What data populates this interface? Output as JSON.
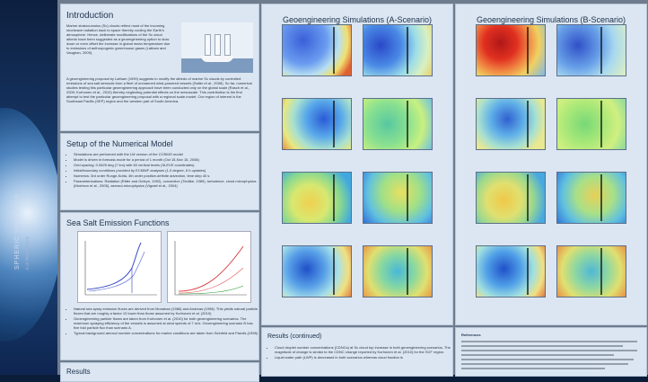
{
  "side": {
    "title": "SPHERIC SCIENCES",
    "subtitle": "e of Atmospheric"
  },
  "intro": {
    "title": "Introduction",
    "text1": "Marine stratocumulus (Sc) clouds reflect most of the incoming shortwave radiation back to space thereby cooling the Earth's atmosphere. Hence, deliberate modifications of the Sc cloud albedo have been suggested as a geoengineering option to slow down or even offset the increase in global mean temperature due to emissions of anthropogenic greenhouse gases (Latham and Vaughan, 2009).",
    "text2": "A geoengineering proposal by Latham (1990) suggests to modify the albedo of marine Sc clouds by controlled emissions of sea salt aerosols from a fleet of unmanned wind-powered vessels (Salter et al., 2008). So far, numerical studies testing this particular geoengineering approach have been conducted only on the global scale (Rasch et al., 2009; Korhonen et al., 2010) thereby neglecting potential effects on the mesoscale. This contribution is the first attempt to test the particular geoengineering proposal with a regional scale-model. Our region of interest is the Southeast Pacific (SEP) region and the western part of South America."
  },
  "setup": {
    "title": "Setup of the Numerical Model",
    "items": [
      "Simulations are performed with the LM version of the COSMO model",
      "Model is driven in forecast-mode for a period of 1 month (Oct 15-Nov 15, 2008)",
      "Grid spacing: 0.0625 deg (7 km) with 60 vertical levels (SLEVE coordinates)",
      "Initial/boundary conditions provided by ECMWF analyses (1.0 degree, 6 h updates)",
      "Numerics: 3rd order Runge-Kutta, 4th order positive-definite advection, time step 40 s",
      "Parameterizations: Radiation (Ritter and Geleyn, 1992), convection (Tiedtke, 1989), turbulence, cloud microphysics (Morrison et al., 2005), aerosol-microphysics (Vignati et al., 2004)"
    ]
  },
  "seasalt": {
    "title": "Sea Salt Emission Functions",
    "items": [
      "Natural sea spray emission fluxes are derived from Monahan (1986) and Andreas (1998). This yields natural particle fluxes that are roughly a factor 10 lower than those assumed by Korhonen et al. (2010)",
      "Geoengineering particle fluxes are taken from Korhonen et al. (2010) for both geoengineering scenarios. The maximum spraying efficiency of the vessels is assumed at wind speeds of 7 m/s. Geoengineering scenario B has five fold particle flux than scenario A.",
      "Typical background aerosol number concentrations for marine conditions are taken from Seinfeld and Pandis (1998)"
    ]
  },
  "results": {
    "title": "Results"
  },
  "simA": {
    "title": "Geoengineering Simulations (A-Scenario)"
  },
  "simB": {
    "title": "Geoengineering Simulations (B-Scenario)"
  },
  "resultsCont": {
    "title": "Results (continued)",
    "items": [
      "Cloud droplet number concentrations (CDNCs) at Sc cloud top increase in both geoengineering scenarios. The magnitude of change is similar to the CDNC change reported by Korhonen et al. (2010) for the SCF region.",
      "Liquid water path (LWP) is decreased in both scenarios whereas cloud fraction is"
    ]
  },
  "references": {
    "title": "References"
  },
  "colors": {
    "panel": "#dbe6f2",
    "heading": "#1d2f4a",
    "background": "#6f7c8d"
  }
}
